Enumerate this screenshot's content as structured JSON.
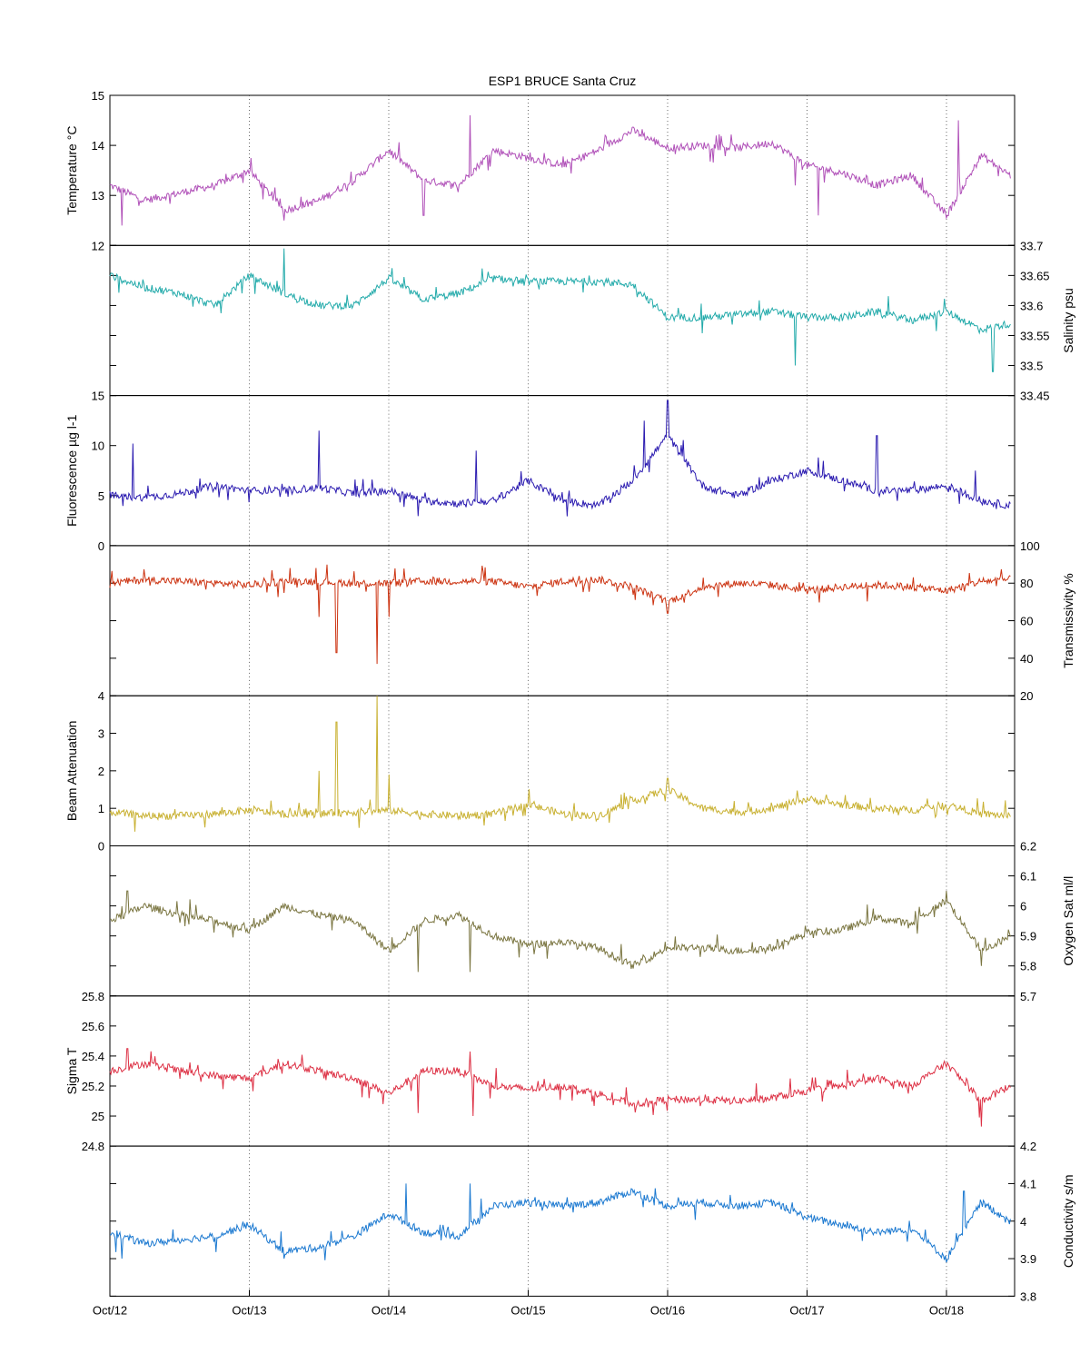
{
  "chart": {
    "title": "ESP1 BRUCE Santa Cruz"
  },
  "chart_data": {
    "type": "line",
    "title": "ESP1 BRUCE Santa Cruz",
    "x_axis": {
      "type": "date",
      "range": [
        "Oct/12",
        "Oct/18 (approx. 11:00)"
      ],
      "tick_labels": [
        "Oct/12",
        "Oct/13",
        "Oct/14",
        "Oct/15",
        "Oct/16",
        "Oct/17",
        "Oct/18"
      ],
      "grid": "vertical dotted lines at each day"
    },
    "panels": [
      {
        "id": "temperature",
        "ylabel": "Temperature °C",
        "axis_side": "left",
        "ylim": [
          12,
          15
        ],
        "ticks": [
          12,
          13,
          14,
          15
        ],
        "color": "#b050b8",
        "x": [
          "Oct/12 00:00",
          "Oct/12 06:00",
          "Oct/12 12:00",
          "Oct/12 18:00",
          "Oct/13 00:00",
          "Oct/13 06:00",
          "Oct/13 12:00",
          "Oct/13 18:00",
          "Oct/14 00:00",
          "Oct/14 06:00",
          "Oct/14 12:00",
          "Oct/14 18:00",
          "Oct/15 00:00",
          "Oct/15 06:00",
          "Oct/15 12:00",
          "Oct/15 18:00",
          "Oct/16 00:00",
          "Oct/16 06:00",
          "Oct/16 12:00",
          "Oct/16 18:00",
          "Oct/17 00:00",
          "Oct/17 06:00",
          "Oct/17 12:00",
          "Oct/17 18:00",
          "Oct/18 00:00",
          "Oct/18 06:00",
          "Oct/18 11:00"
        ],
        "values": [
          13.2,
          12.9,
          13.05,
          13.2,
          13.5,
          12.7,
          12.9,
          13.3,
          13.9,
          13.3,
          13.2,
          13.9,
          13.75,
          13.6,
          13.9,
          14.3,
          13.95,
          14.0,
          13.95,
          14.05,
          13.6,
          13.45,
          13.2,
          13.4,
          12.6,
          13.8,
          13.4
        ],
        "spikes": [
          [
            "Oct/12 02:00",
            12.4
          ],
          [
            "Oct/13 06:00",
            12.5
          ],
          [
            "Oct/14 06:00",
            12.6
          ],
          [
            "Oct/14 14:00",
            14.6
          ],
          [
            "Oct/16 22:00",
            13.2
          ],
          [
            "Oct/17 02:00",
            12.6
          ],
          [
            "Oct/18 02:00",
            14.5
          ]
        ]
      },
      {
        "id": "salinity",
        "ylabel": "Salinity psu",
        "axis_side": "right",
        "ylim": [
          33.45,
          33.7
        ],
        "ticks": [
          33.45,
          33.5,
          33.55,
          33.6,
          33.65,
          33.7
        ],
        "color": "#22aaaa",
        "x": [
          "Oct/12 00:00",
          "Oct/12 06:00",
          "Oct/12 12:00",
          "Oct/12 18:00",
          "Oct/13 00:00",
          "Oct/13 06:00",
          "Oct/13 12:00",
          "Oct/13 18:00",
          "Oct/14 00:00",
          "Oct/14 06:00",
          "Oct/14 12:00",
          "Oct/14 18:00",
          "Oct/15 00:00",
          "Oct/15 06:00",
          "Oct/15 12:00",
          "Oct/15 18:00",
          "Oct/16 00:00",
          "Oct/16 06:00",
          "Oct/16 12:00",
          "Oct/16 18:00",
          "Oct/17 00:00",
          "Oct/17 06:00",
          "Oct/17 12:00",
          "Oct/17 18:00",
          "Oct/18 00:00",
          "Oct/18 06:00",
          "Oct/18 11:00"
        ],
        "values": [
          33.65,
          33.63,
          33.62,
          33.6,
          33.65,
          33.62,
          33.6,
          33.6,
          33.645,
          33.61,
          33.62,
          33.645,
          33.64,
          33.64,
          33.64,
          33.635,
          33.58,
          33.58,
          33.585,
          33.59,
          33.58,
          33.58,
          33.59,
          33.575,
          33.59,
          33.56,
          33.57
        ],
        "spikes": [
          [
            "Oct/13 06:00",
            33.695
          ],
          [
            "Oct/16 22:00",
            33.5
          ],
          [
            "Oct/18 08:00",
            33.49
          ]
        ]
      },
      {
        "id": "fluorescence",
        "ylabel": "Fluorescence µg l-1",
        "axis_side": "left",
        "ylim": [
          0,
          15
        ],
        "ticks": [
          0,
          5,
          10,
          15
        ],
        "color": "#2a1ab0",
        "x": [
          "Oct/12 00:00",
          "Oct/12 06:00",
          "Oct/12 12:00",
          "Oct/12 18:00",
          "Oct/13 00:00",
          "Oct/13 06:00",
          "Oct/13 12:00",
          "Oct/13 18:00",
          "Oct/14 00:00",
          "Oct/14 06:00",
          "Oct/14 12:00",
          "Oct/14 18:00",
          "Oct/15 00:00",
          "Oct/15 06:00",
          "Oct/15 12:00",
          "Oct/15 18:00",
          "Oct/16 00:00",
          "Oct/16 06:00",
          "Oct/16 12:00",
          "Oct/16 18:00",
          "Oct/17 00:00",
          "Oct/17 06:00",
          "Oct/17 12:00",
          "Oct/17 18:00",
          "Oct/18 00:00",
          "Oct/18 06:00",
          "Oct/18 11:00"
        ],
        "values": [
          5,
          4.8,
          5.2,
          6,
          5.5,
          5.5,
          5.8,
          5.2,
          5.5,
          4.5,
          4.2,
          4.5,
          6.5,
          4.5,
          4,
          6.5,
          11,
          6,
          5,
          6.5,
          7.5,
          6.5,
          5.5,
          5.5,
          6,
          4.5,
          4
        ],
        "spikes": [
          [
            "Oct/12 04:00",
            10.2
          ],
          [
            "Oct/13 12:00",
            11.5
          ],
          [
            "Oct/14 15:00",
            9.5
          ],
          [
            "Oct/15 20:00",
            12.5
          ],
          [
            "Oct/16 00:00",
            14.5
          ],
          [
            "Oct/17 12:00",
            11
          ],
          [
            "Oct/18 05:00",
            7.5
          ]
        ]
      },
      {
        "id": "transmissivity",
        "ylabel": "Transmissivity %",
        "axis_side": "right",
        "ylim": [
          20,
          100
        ],
        "ticks": [
          20,
          40,
          60,
          80,
          100
        ],
        "color": "#cc3311",
        "x": [
          "Oct/12 00:00",
          "Oct/12 06:00",
          "Oct/12 12:00",
          "Oct/12 18:00",
          "Oct/13 00:00",
          "Oct/13 06:00",
          "Oct/13 12:00",
          "Oct/13 18:00",
          "Oct/14 00:00",
          "Oct/14 06:00",
          "Oct/14 12:00",
          "Oct/14 18:00",
          "Oct/15 00:00",
          "Oct/15 06:00",
          "Oct/15 12:00",
          "Oct/15 18:00",
          "Oct/16 00:00",
          "Oct/16 06:00",
          "Oct/16 12:00",
          "Oct/16 18:00",
          "Oct/17 00:00",
          "Oct/17 06:00",
          "Oct/17 12:00",
          "Oct/17 18:00",
          "Oct/18 00:00",
          "Oct/18 06:00",
          "Oct/18 11:00"
        ],
        "values": [
          80,
          82,
          81,
          80,
          79,
          81,
          81,
          80,
          80,
          81,
          81,
          81,
          78,
          81,
          82,
          78,
          70,
          78,
          80,
          79,
          76,
          78,
          79,
          78,
          76,
          81,
          82
        ],
        "spikes": [
          [
            "Oct/13 12:00",
            62
          ],
          [
            "Oct/13 15:00",
            43
          ],
          [
            "Oct/13 22:00",
            37
          ],
          [
            "Oct/14 00:00",
            62
          ],
          [
            "Oct/16 00:00",
            64
          ]
        ]
      },
      {
        "id": "beam_attenuation",
        "ylabel": "Beam Attenuation",
        "axis_side": "left",
        "ylim": [
          0,
          4
        ],
        "ticks": [
          0,
          1,
          2,
          3,
          4
        ],
        "color": "#c8b030",
        "x": [
          "Oct/12 00:00",
          "Oct/12 06:00",
          "Oct/12 12:00",
          "Oct/12 18:00",
          "Oct/13 00:00",
          "Oct/13 06:00",
          "Oct/13 12:00",
          "Oct/13 18:00",
          "Oct/14 00:00",
          "Oct/14 06:00",
          "Oct/14 12:00",
          "Oct/14 18:00",
          "Oct/15 00:00",
          "Oct/15 06:00",
          "Oct/15 12:00",
          "Oct/15 18:00",
          "Oct/16 00:00",
          "Oct/16 06:00",
          "Oct/16 12:00",
          "Oct/16 18:00",
          "Oct/17 00:00",
          "Oct/17 06:00",
          "Oct/17 12:00",
          "Oct/17 18:00",
          "Oct/18 00:00",
          "Oct/18 06:00",
          "Oct/18 11:00"
        ],
        "values": [
          0.9,
          0.8,
          0.8,
          0.85,
          0.95,
          0.85,
          0.85,
          0.9,
          0.95,
          0.85,
          0.8,
          0.85,
          1.1,
          0.85,
          0.8,
          1.2,
          1.5,
          1.0,
          0.9,
          1.0,
          1.25,
          1.1,
          1.0,
          0.95,
          1.1,
          0.85,
          0.8
        ],
        "spikes": [
          [
            "Oct/13 12:00",
            2.0
          ],
          [
            "Oct/13 15:00",
            3.3
          ],
          [
            "Oct/13 22:00",
            4.0
          ],
          [
            "Oct/14 00:00",
            1.9
          ],
          [
            "Oct/16 00:00",
            1.8
          ]
        ]
      },
      {
        "id": "oxygen_sat",
        "ylabel": "Oxygen Sat ml/l",
        "axis_side": "right",
        "ylim": [
          5.7,
          6.2
        ],
        "ticks": [
          5.7,
          5.8,
          5.9,
          6,
          6.1,
          6.2
        ],
        "color": "#7a7540",
        "x": [
          "Oct/12 00:00",
          "Oct/12 06:00",
          "Oct/12 12:00",
          "Oct/12 18:00",
          "Oct/13 00:00",
          "Oct/13 06:00",
          "Oct/13 12:00",
          "Oct/13 18:00",
          "Oct/14 00:00",
          "Oct/14 06:00",
          "Oct/14 12:00",
          "Oct/14 18:00",
          "Oct/15 00:00",
          "Oct/15 06:00",
          "Oct/15 12:00",
          "Oct/15 18:00",
          "Oct/16 00:00",
          "Oct/16 06:00",
          "Oct/16 12:00",
          "Oct/16 18:00",
          "Oct/17 00:00",
          "Oct/17 06:00",
          "Oct/17 12:00",
          "Oct/17 18:00",
          "Oct/18 00:00",
          "Oct/18 06:00",
          "Oct/18 11:00"
        ],
        "values": [
          5.95,
          6.0,
          5.97,
          5.95,
          5.92,
          6.0,
          5.97,
          5.95,
          5.85,
          5.95,
          5.97,
          5.9,
          5.87,
          5.88,
          5.86,
          5.8,
          5.86,
          5.86,
          5.85,
          5.86,
          5.91,
          5.92,
          5.96,
          5.94,
          6.02,
          5.85,
          5.9
        ],
        "spikes": [
          [
            "Oct/12 03:00",
            6.05
          ],
          [
            "Oct/14 05:00",
            5.78
          ],
          [
            "Oct/14 14:00",
            5.78
          ],
          [
            "Oct/18 00:00",
            6.05
          ],
          [
            "Oct/18 06:00",
            5.8
          ]
        ]
      },
      {
        "id": "sigma_t",
        "ylabel": "Sigma T",
        "axis_side": "left",
        "ylim": [
          24.8,
          25.8
        ],
        "ticks": [
          24.8,
          25,
          25.2,
          25.4,
          25.6,
          25.8
        ],
        "color": "#dd3044",
        "x": [
          "Oct/12 00:00",
          "Oct/12 06:00",
          "Oct/12 12:00",
          "Oct/12 18:00",
          "Oct/13 00:00",
          "Oct/13 06:00",
          "Oct/13 12:00",
          "Oct/13 18:00",
          "Oct/14 00:00",
          "Oct/14 06:00",
          "Oct/14 12:00",
          "Oct/14 18:00",
          "Oct/15 00:00",
          "Oct/15 06:00",
          "Oct/15 12:00",
          "Oct/15 18:00",
          "Oct/16 00:00",
          "Oct/16 06:00",
          "Oct/16 12:00",
          "Oct/16 18:00",
          "Oct/17 00:00",
          "Oct/17 06:00",
          "Oct/17 12:00",
          "Oct/17 18:00",
          "Oct/18 00:00",
          "Oct/18 06:00",
          "Oct/18 11:00"
        ],
        "values": [
          25.3,
          25.35,
          25.3,
          25.27,
          25.25,
          25.35,
          25.3,
          25.25,
          25.15,
          25.3,
          25.3,
          25.2,
          25.18,
          25.2,
          25.15,
          25.08,
          25.11,
          25.11,
          25.1,
          25.12,
          25.17,
          25.2,
          25.25,
          25.2,
          25.35,
          25.1,
          25.2
        ],
        "spikes": [
          [
            "Oct/12 03:00",
            25.45
          ],
          [
            "Oct/14 05:00",
            25.02
          ],
          [
            "Oct/14 14:00",
            25.43
          ],
          [
            "Oct/14 14:30",
            25.0
          ],
          [
            "Oct/18 06:00",
            24.93
          ]
        ]
      },
      {
        "id": "conductivity",
        "ylabel": "Conductivity s/m",
        "axis_side": "right",
        "ylim": [
          3.8,
          4.2
        ],
        "ticks": [
          3.8,
          3.9,
          4,
          4.1,
          4.2
        ],
        "color": "#1a78d0",
        "x": [
          "Oct/12 00:00",
          "Oct/12 06:00",
          "Oct/12 12:00",
          "Oct/12 18:00",
          "Oct/13 00:00",
          "Oct/13 06:00",
          "Oct/13 12:00",
          "Oct/13 18:00",
          "Oct/14 00:00",
          "Oct/14 06:00",
          "Oct/14 12:00",
          "Oct/14 18:00",
          "Oct/15 00:00",
          "Oct/15 06:00",
          "Oct/15 12:00",
          "Oct/15 18:00",
          "Oct/16 00:00",
          "Oct/16 06:00",
          "Oct/16 12:00",
          "Oct/16 18:00",
          "Oct/17 00:00",
          "Oct/17 06:00",
          "Oct/17 12:00",
          "Oct/17 18:00",
          "Oct/18 00:00",
          "Oct/18 06:00",
          "Oct/18 11:00"
        ],
        "values": [
          3.97,
          3.94,
          3.95,
          3.96,
          3.99,
          3.92,
          3.93,
          3.96,
          4.02,
          3.97,
          3.96,
          4.04,
          4.05,
          4.04,
          4.05,
          4.08,
          4.04,
          4.05,
          4.04,
          4.05,
          4.01,
          3.99,
          3.97,
          3.98,
          3.9,
          4.05,
          4.0
        ],
        "spikes": [
          [
            "Oct/12 02:00",
            3.9
          ],
          [
            "Oct/13 06:00",
            3.9
          ],
          [
            "Oct/14 03:00",
            4.1
          ],
          [
            "Oct/14 14:00",
            4.1
          ],
          [
            "Oct/18 00:00",
            3.89
          ],
          [
            "Oct/18 03:00",
            4.08
          ]
        ]
      }
    ]
  }
}
